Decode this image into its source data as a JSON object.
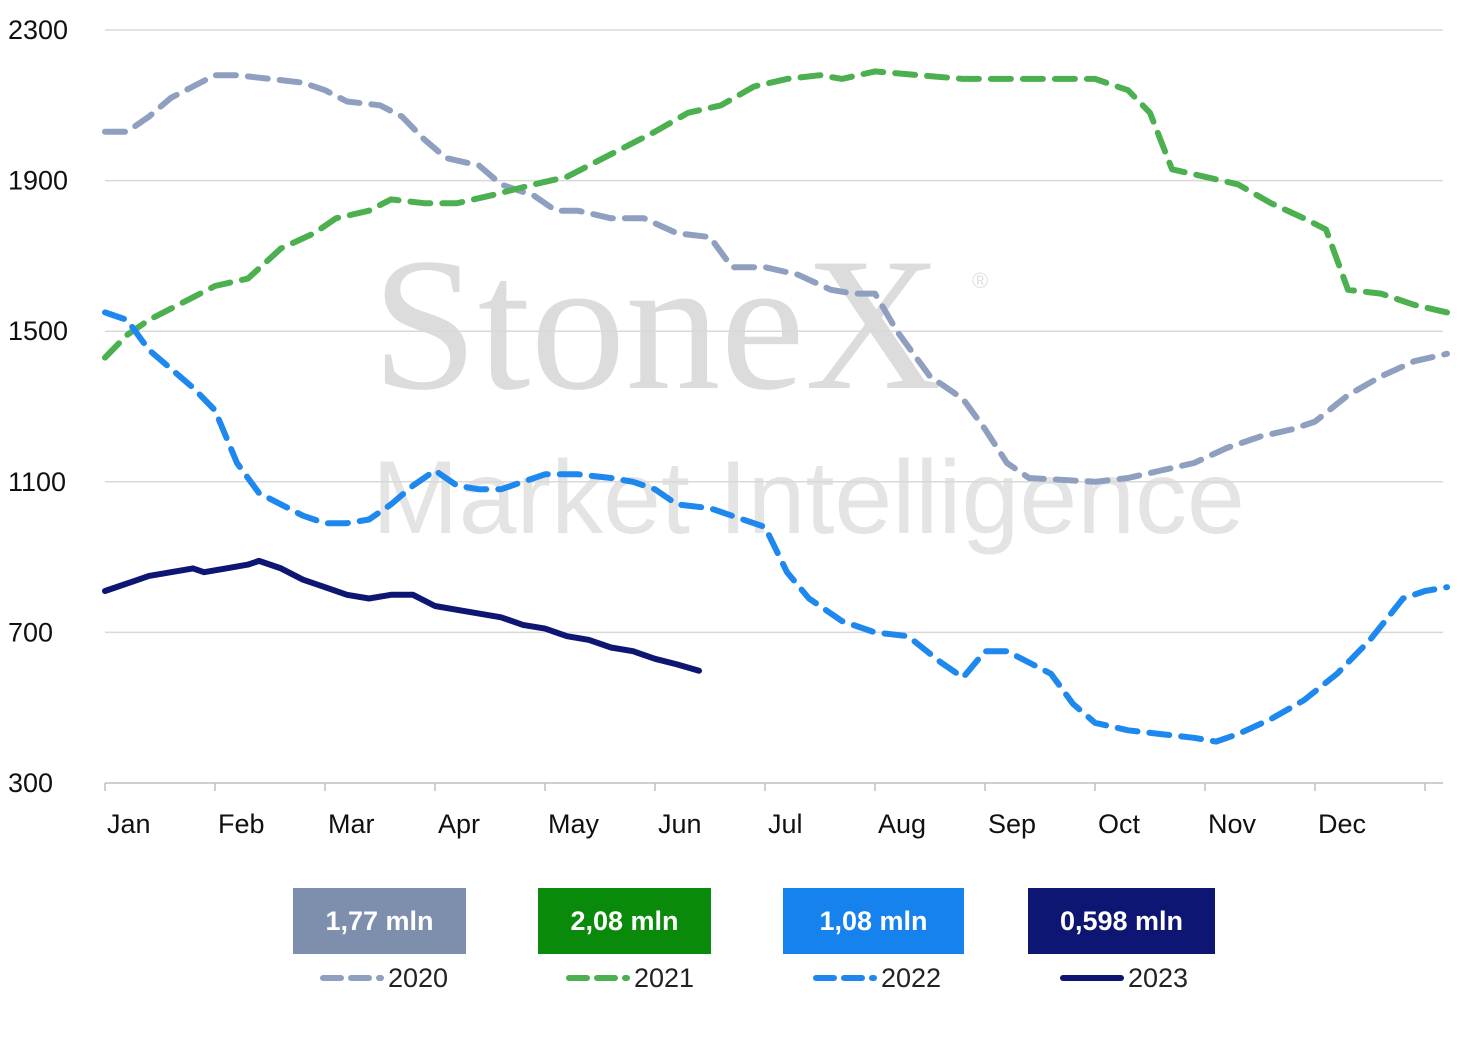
{
  "watermark": {
    "brand": "StoneX",
    "registered": "®",
    "tagline": "Market Intelligence"
  },
  "colors": {
    "s2020": "#8e9fbf",
    "s2021": "#4caf50",
    "s2022": "#1e88ef",
    "s2023": "#0d1672",
    "badge2020": "#7d8fad",
    "badge2021": "#0a8a0a",
    "badge2022": "#1582ee",
    "badge2023": "#0d1672",
    "grid": "#d9d9d9"
  },
  "badges": [
    {
      "label": "1,77 mln",
      "series": "2020"
    },
    {
      "label": "2,08 mln",
      "series": "2021"
    },
    {
      "label": "1,08 mln",
      "series": "2022"
    },
    {
      "label": "0,598 mln",
      "series": "2023"
    }
  ],
  "chart_data": {
    "type": "line",
    "xlabel": "",
    "ylabel": "",
    "x_ticks": [
      "Jan",
      "Feb",
      "Mar",
      "Apr",
      "May",
      "Jun",
      "Jul",
      "Aug",
      "Sep",
      "Oct",
      "Nov",
      "Dec"
    ],
    "y_ticks": [
      "2300",
      "1900",
      "1500",
      "1100",
      "700",
      "300"
    ],
    "ylim": [
      300,
      2300
    ],
    "xlim": [
      0,
      12.2
    ],
    "grid": "horizontal",
    "legend": "bottom",
    "series": [
      {
        "name": "2020",
        "style": "dashed",
        "points": [
          [
            0.0,
            2030
          ],
          [
            0.2,
            2030
          ],
          [
            0.4,
            2070
          ],
          [
            0.6,
            2120
          ],
          [
            0.8,
            2150
          ],
          [
            1.0,
            2180
          ],
          [
            1.2,
            2180
          ],
          [
            1.5,
            2170
          ],
          [
            1.8,
            2160
          ],
          [
            2.0,
            2140
          ],
          [
            2.2,
            2110
          ],
          [
            2.5,
            2100
          ],
          [
            2.7,
            2070
          ],
          [
            2.9,
            2010
          ],
          [
            3.1,
            1960
          ],
          [
            3.4,
            1940
          ],
          [
            3.6,
            1890
          ],
          [
            3.9,
            1860
          ],
          [
            4.1,
            1820
          ],
          [
            4.3,
            1820
          ],
          [
            4.6,
            1800
          ],
          [
            4.9,
            1800
          ],
          [
            5.2,
            1760
          ],
          [
            5.5,
            1750
          ],
          [
            5.7,
            1670
          ],
          [
            6.0,
            1670
          ],
          [
            6.3,
            1650
          ],
          [
            6.6,
            1610
          ],
          [
            6.8,
            1600
          ],
          [
            7.0,
            1600
          ],
          [
            7.2,
            1500
          ],
          [
            7.5,
            1380
          ],
          [
            7.8,
            1320
          ],
          [
            8.0,
            1240
          ],
          [
            8.2,
            1150
          ],
          [
            8.4,
            1110
          ],
          [
            8.7,
            1105
          ],
          [
            9.0,
            1100
          ],
          [
            9.3,
            1110
          ],
          [
            9.6,
            1130
          ],
          [
            9.9,
            1150
          ],
          [
            10.2,
            1190
          ],
          [
            10.5,
            1220
          ],
          [
            10.8,
            1240
          ],
          [
            11.0,
            1260
          ],
          [
            11.3,
            1330
          ],
          [
            11.6,
            1380
          ],
          [
            11.9,
            1420
          ],
          [
            12.2,
            1440
          ]
        ]
      },
      {
        "name": "2021",
        "style": "dashed",
        "points": [
          [
            0.0,
            1430
          ],
          [
            0.2,
            1490
          ],
          [
            0.4,
            1530
          ],
          [
            0.6,
            1560
          ],
          [
            0.8,
            1590
          ],
          [
            1.0,
            1620
          ],
          [
            1.3,
            1640
          ],
          [
            1.6,
            1720
          ],
          [
            1.9,
            1760
          ],
          [
            2.1,
            1800
          ],
          [
            2.4,
            1820
          ],
          [
            2.6,
            1850
          ],
          [
            2.9,
            1840
          ],
          [
            3.2,
            1840
          ],
          [
            3.5,
            1860
          ],
          [
            3.9,
            1890
          ],
          [
            4.2,
            1910
          ],
          [
            4.6,
            1970
          ],
          [
            5.0,
            2030
          ],
          [
            5.3,
            2080
          ],
          [
            5.6,
            2100
          ],
          [
            5.9,
            2150
          ],
          [
            6.2,
            2170
          ],
          [
            6.5,
            2180
          ],
          [
            6.7,
            2170
          ],
          [
            7.0,
            2190
          ],
          [
            7.4,
            2180
          ],
          [
            7.8,
            2170
          ],
          [
            8.2,
            2170
          ],
          [
            8.6,
            2170
          ],
          [
            9.0,
            2170
          ],
          [
            9.3,
            2140
          ],
          [
            9.5,
            2080
          ],
          [
            9.7,
            1930
          ],
          [
            10.0,
            1910
          ],
          [
            10.3,
            1890
          ],
          [
            10.6,
            1840
          ],
          [
            10.9,
            1800
          ],
          [
            11.1,
            1770
          ],
          [
            11.3,
            1610
          ],
          [
            11.6,
            1600
          ],
          [
            11.9,
            1570
          ],
          [
            12.2,
            1550
          ]
        ]
      },
      {
        "name": "2022",
        "style": "dashed",
        "points": [
          [
            0.0,
            1550
          ],
          [
            0.2,
            1530
          ],
          [
            0.4,
            1450
          ],
          [
            0.6,
            1400
          ],
          [
            0.8,
            1350
          ],
          [
            1.0,
            1290
          ],
          [
            1.2,
            1150
          ],
          [
            1.4,
            1070
          ],
          [
            1.6,
            1040
          ],
          [
            1.8,
            1010
          ],
          [
            2.0,
            990
          ],
          [
            2.2,
            990
          ],
          [
            2.4,
            1000
          ],
          [
            2.6,
            1040
          ],
          [
            2.8,
            1090
          ],
          [
            3.0,
            1130
          ],
          [
            3.2,
            1090
          ],
          [
            3.4,
            1080
          ],
          [
            3.6,
            1080
          ],
          [
            3.8,
            1100
          ],
          [
            4.0,
            1120
          ],
          [
            4.3,
            1120
          ],
          [
            4.6,
            1110
          ],
          [
            4.8,
            1100
          ],
          [
            5.0,
            1080
          ],
          [
            5.2,
            1040
          ],
          [
            5.5,
            1030
          ],
          [
            5.8,
            1000
          ],
          [
            6.0,
            980
          ],
          [
            6.2,
            860
          ],
          [
            6.4,
            790
          ],
          [
            6.7,
            730
          ],
          [
            7.0,
            700
          ],
          [
            7.3,
            690
          ],
          [
            7.6,
            620
          ],
          [
            7.8,
            580
          ],
          [
            8.0,
            650
          ],
          [
            8.2,
            650
          ],
          [
            8.4,
            620
          ],
          [
            8.6,
            590
          ],
          [
            8.8,
            510
          ],
          [
            9.0,
            460
          ],
          [
            9.3,
            440
          ],
          [
            9.6,
            430
          ],
          [
            9.9,
            420
          ],
          [
            10.1,
            410
          ],
          [
            10.3,
            430
          ],
          [
            10.6,
            470
          ],
          [
            10.9,
            520
          ],
          [
            11.2,
            590
          ],
          [
            11.5,
            680
          ],
          [
            11.8,
            790
          ],
          [
            12.0,
            810
          ],
          [
            12.2,
            820
          ]
        ]
      },
      {
        "name": "2023",
        "style": "solid",
        "points": [
          [
            0.0,
            810
          ],
          [
            0.2,
            830
          ],
          [
            0.4,
            850
          ],
          [
            0.6,
            860
          ],
          [
            0.8,
            870
          ],
          [
            0.9,
            860
          ],
          [
            1.1,
            870
          ],
          [
            1.3,
            880
          ],
          [
            1.4,
            890
          ],
          [
            1.6,
            870
          ],
          [
            1.8,
            840
          ],
          [
            2.0,
            820
          ],
          [
            2.2,
            800
          ],
          [
            2.4,
            790
          ],
          [
            2.6,
            800
          ],
          [
            2.8,
            800
          ],
          [
            3.0,
            770
          ],
          [
            3.2,
            760
          ],
          [
            3.4,
            750
          ],
          [
            3.6,
            740
          ],
          [
            3.8,
            720
          ],
          [
            4.0,
            710
          ],
          [
            4.2,
            690
          ],
          [
            4.4,
            680
          ],
          [
            4.6,
            660
          ],
          [
            4.8,
            650
          ],
          [
            5.0,
            630
          ],
          [
            5.2,
            615
          ],
          [
            5.4,
            598
          ]
        ]
      }
    ]
  }
}
